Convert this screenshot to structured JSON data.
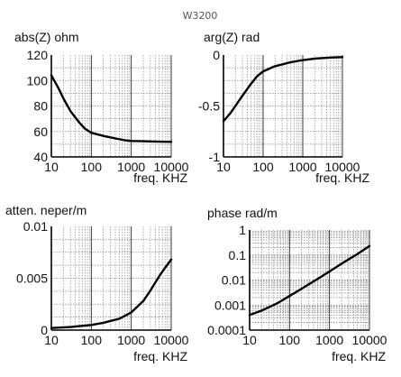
{
  "figure": {
    "title": "W3200"
  },
  "chart_data": [
    {
      "type": "line",
      "title": "abs(Z) ohm",
      "xlabel": "freq. KHZ",
      "xscale": "log",
      "yscale": "linear",
      "xlim": [
        10,
        10000
      ],
      "ylim": [
        40,
        120
      ],
      "xticks": [
        {
          "v": 10,
          "t": "10"
        },
        {
          "v": 100,
          "t": "100"
        },
        {
          "v": 1000,
          "t": "1000"
        },
        {
          "v": 10000,
          "t": "10000"
        }
      ],
      "yticks": [
        {
          "v": 40,
          "t": "40"
        },
        {
          "v": 60,
          "t": "60"
        },
        {
          "v": 80,
          "t": "80"
        },
        {
          "v": 100,
          "t": "100"
        },
        {
          "v": 120,
          "t": "120"
        }
      ],
      "series": [
        {
          "x": [
            10,
            15,
            20,
            30,
            50,
            70,
            100,
            200,
            400,
            700,
            1000,
            2000,
            5000,
            10000
          ],
          "values": [
            104,
            94,
            86,
            76,
            67,
            62,
            59,
            56.5,
            54.5,
            53,
            52.5,
            52.3,
            52.0,
            51.8
          ]
        }
      ]
    },
    {
      "type": "line",
      "title": "arg(Z) rad",
      "xlabel": "freq. KHZ",
      "xscale": "log",
      "yscale": "linear",
      "xlim": [
        10,
        10000
      ],
      "ylim": [
        -1,
        0
      ],
      "xticks": [
        {
          "v": 10,
          "t": "10"
        },
        {
          "v": 100,
          "t": "100"
        },
        {
          "v": 1000,
          "t": "1000"
        },
        {
          "v": 10000,
          "t": "10000"
        }
      ],
      "yticks": [
        {
          "v": -1,
          "t": "-1"
        },
        {
          "v": -0.5,
          "t": "-0.5"
        },
        {
          "v": 0,
          "t": "0"
        }
      ],
      "series": [
        {
          "x": [
            10,
            15,
            20,
            30,
            50,
            70,
            100,
            200,
            500,
            1000,
            2000,
            5000,
            10000
          ],
          "values": [
            -0.65,
            -0.57,
            -0.5,
            -0.4,
            -0.28,
            -0.21,
            -0.16,
            -0.11,
            -0.07,
            -0.05,
            -0.035,
            -0.025,
            -0.02
          ]
        }
      ]
    },
    {
      "type": "line",
      "title": "atten. neper/m",
      "xlabel": "freq. KHZ",
      "xscale": "log",
      "yscale": "linear",
      "xlim": [
        10,
        10000
      ],
      "ylim": [
        0,
        0.01
      ],
      "xticks": [
        {
          "v": 10,
          "t": "10"
        },
        {
          "v": 100,
          "t": "100"
        },
        {
          "v": 1000,
          "t": "1000"
        },
        {
          "v": 10000,
          "t": "10000"
        }
      ],
      "yticks": [
        {
          "v": 0,
          "t": "0"
        },
        {
          "v": 0.005,
          "t": "0.005"
        },
        {
          "v": 0.01,
          "t": "0.01"
        }
      ],
      "series": [
        {
          "x": [
            10,
            30,
            100,
            200,
            500,
            1000,
            2000,
            3000,
            5000,
            7000,
            10000
          ],
          "values": [
            0.0002,
            0.0003,
            0.0005,
            0.0007,
            0.0011,
            0.0017,
            0.0028,
            0.0038,
            0.0052,
            0.006,
            0.0068
          ]
        }
      ]
    },
    {
      "type": "line",
      "title": "phase rad/m",
      "xlabel": "freq. KHZ",
      "xscale": "log",
      "yscale": "log",
      "xlim": [
        10,
        10000
      ],
      "ylim": [
        0.0001,
        1
      ],
      "xticks": [
        {
          "v": 10,
          "t": "10"
        },
        {
          "v": 100,
          "t": "100"
        },
        {
          "v": 1000,
          "t": "1000"
        },
        {
          "v": 10000,
          "t": "10000"
        }
      ],
      "yticks": [
        {
          "v": 0.0001,
          "t": "0.0001"
        },
        {
          "v": 0.001,
          "t": "0.001"
        },
        {
          "v": 0.01,
          "t": "0.01"
        },
        {
          "v": 0.1,
          "t": "0.1"
        },
        {
          "v": 1,
          "t": "1"
        }
      ],
      "series": [
        {
          "x": [
            10,
            20,
            50,
            100,
            200,
            500,
            1000,
            2000,
            5000,
            10000
          ],
          "values": [
            0.0004,
            0.0006,
            0.0012,
            0.0023,
            0.0045,
            0.011,
            0.022,
            0.045,
            0.11,
            0.23
          ]
        }
      ]
    }
  ]
}
